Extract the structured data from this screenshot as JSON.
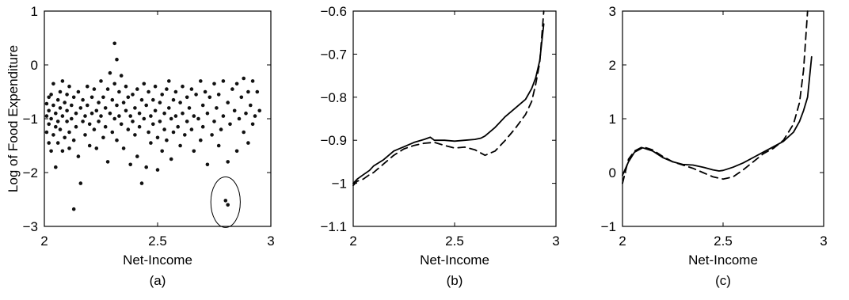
{
  "chart_data": [
    {
      "panel": "(a)",
      "type": "scatter",
      "xlabel": "Net-Income",
      "ylabel": "Log of Food Expenditure",
      "xlim": [
        2,
        3
      ],
      "ylim": [
        -3,
        1
      ],
      "xticks": [
        "2",
        "2.5",
        "3"
      ],
      "yticks": [
        "1",
        "0",
        "−1",
        "−2",
        "−3"
      ],
      "xtick_values": [
        2,
        2.5,
        3
      ],
      "ytick_values": [
        1,
        0,
        -1,
        -2,
        -3
      ],
      "grid": false,
      "annotation": "circle around two outlying points",
      "circle": {
        "cx": 2.8,
        "cy": -2.55,
        "rx": 0.065,
        "ry": 0.47
      },
      "series": [
        {
          "marker": "dot",
          "color": "#111111",
          "points": [
            [
              2.01,
              -0.72
            ],
            [
              2.01,
              -0.95
            ],
            [
              2.01,
              -1.25
            ],
            [
              2.02,
              -0.6
            ],
            [
              2.02,
              -1.1
            ],
            [
              2.02,
              -1.45
            ],
            [
              2.02,
              -0.85
            ],
            [
              2.03,
              -0.55
            ],
            [
              2.03,
              -1.0
            ],
            [
              2.03,
              -1.6
            ],
            [
              2.04,
              -0.75
            ],
            [
              2.04,
              -1.3
            ],
            [
              2.04,
              -0.35
            ],
            [
              2.05,
              -0.9
            ],
            [
              2.05,
              -1.15
            ],
            [
              2.05,
              -1.9
            ],
            [
              2.06,
              -0.65
            ],
            [
              2.06,
              -1.05
            ],
            [
              2.06,
              -1.45
            ],
            [
              2.07,
              -0.5
            ],
            [
              2.07,
              -0.8
            ],
            [
              2.07,
              -1.2
            ],
            [
              2.08,
              -0.3
            ],
            [
              2.08,
              -0.95
            ],
            [
              2.08,
              -1.6
            ],
            [
              2.09,
              -0.7
            ],
            [
              2.09,
              -1.35
            ],
            [
              2.1,
              -0.55
            ],
            [
              2.1,
              -0.85
            ],
            [
              2.1,
              -1.05
            ],
            [
              2.11,
              -0.4
            ],
            [
              2.11,
              -1.25
            ],
            [
              2.11,
              -1.55
            ],
            [
              2.12,
              -0.75
            ],
            [
              2.12,
              -1.0
            ],
            [
              2.13,
              -0.6
            ],
            [
              2.13,
              -1.4
            ],
            [
              2.13,
              -2.68
            ],
            [
              2.14,
              -0.9
            ],
            [
              2.14,
              -1.15
            ],
            [
              2.15,
              -0.5
            ],
            [
              2.15,
              -1.7
            ],
            [
              2.16,
              -0.8
            ],
            [
              2.16,
              -2.2
            ],
            [
              2.17,
              -0.65
            ],
            [
              2.17,
              -1.05
            ],
            [
              2.18,
              -0.95
            ],
            [
              2.18,
              -1.3
            ],
            [
              2.19,
              -0.4
            ],
            [
              2.19,
              -0.75
            ],
            [
              2.2,
              -1.1
            ],
            [
              2.2,
              -1.5
            ],
            [
              2.21,
              -0.6
            ],
            [
              2.21,
              -0.9
            ],
            [
              2.22,
              -1.2
            ],
            [
              2.22,
              -0.45
            ],
            [
              2.23,
              -0.85
            ],
            [
              2.23,
              -1.55
            ],
            [
              2.24,
              -0.7
            ],
            [
              2.24,
              -1.05
            ],
            [
              2.25,
              -0.3
            ],
            [
              2.25,
              -0.95
            ],
            [
              2.26,
              -0.6
            ],
            [
              2.26,
              -1.35
            ],
            [
              2.27,
              -0.8
            ],
            [
              2.27,
              -1.15
            ],
            [
              2.28,
              -0.45
            ],
            [
              2.28,
              -1.8
            ],
            [
              2.29,
              -0.15
            ],
            [
              2.29,
              -0.9
            ],
            [
              2.3,
              -0.65
            ],
            [
              2.3,
              -1.25
            ],
            [
              2.31,
              0.4
            ],
            [
              2.31,
              -0.35
            ],
            [
              2.31,
              -1.0
            ],
            [
              2.32,
              0.1
            ],
            [
              2.32,
              -0.75
            ],
            [
              2.32,
              -1.4
            ],
            [
              2.33,
              -0.5
            ],
            [
              2.33,
              -0.95
            ],
            [
              2.34,
              -0.2
            ],
            [
              2.34,
              -1.1
            ],
            [
              2.35,
              -0.7
            ],
            [
              2.35,
              -1.55
            ],
            [
              2.36,
              -0.4
            ],
            [
              2.36,
              -0.85
            ],
            [
              2.37,
              -1.2
            ],
            [
              2.37,
              -0.6
            ],
            [
              2.38,
              -0.95
            ],
            [
              2.38,
              -1.85
            ],
            [
              2.39,
              -0.55
            ],
            [
              2.39,
              -1.05
            ],
            [
              2.4,
              -0.8
            ],
            [
              2.4,
              -1.3
            ],
            [
              2.41,
              -0.45
            ],
            [
              2.41,
              -1.7
            ],
            [
              2.42,
              -0.9
            ],
            [
              2.42,
              -1.15
            ],
            [
              2.43,
              -0.65
            ],
            [
              2.43,
              -2.2
            ],
            [
              2.44,
              -0.35
            ],
            [
              2.44,
              -1.0
            ],
            [
              2.45,
              -1.9
            ],
            [
              2.45,
              -0.75
            ],
            [
              2.46,
              -1.25
            ],
            [
              2.46,
              -0.5
            ],
            [
              2.47,
              -0.95
            ],
            [
              2.47,
              -1.45
            ],
            [
              2.48,
              -0.65
            ],
            [
              2.48,
              -1.1
            ],
            [
              2.49,
              -0.4
            ],
            [
              2.49,
              -0.85
            ],
            [
              2.5,
              -1.35
            ],
            [
              2.5,
              -1.95
            ],
            [
              2.51,
              -0.7
            ],
            [
              2.51,
              -1.05
            ],
            [
              2.52,
              -0.55
            ],
            [
              2.52,
              -1.6
            ],
            [
              2.53,
              -0.9
            ],
            [
              2.53,
              -1.2
            ],
            [
              2.54,
              -0.45
            ],
            [
              2.54,
              -1.4
            ],
            [
              2.55,
              -0.8
            ],
            [
              2.55,
              -0.3
            ],
            [
              2.56,
              -1.0
            ],
            [
              2.56,
              -1.75
            ],
            [
              2.57,
              -0.65
            ],
            [
              2.57,
              -1.25
            ],
            [
              2.58,
              -0.5
            ],
            [
              2.58,
              -0.95
            ],
            [
              2.59,
              -1.15
            ],
            [
              2.6,
              -0.7
            ],
            [
              2.6,
              -1.5
            ],
            [
              2.61,
              -0.4
            ],
            [
              2.61,
              -0.9
            ],
            [
              2.62,
              -1.3
            ],
            [
              2.63,
              -0.6
            ],
            [
              2.63,
              -1.05
            ],
            [
              2.64,
              -0.8
            ],
            [
              2.65,
              -0.45
            ],
            [
              2.65,
              -1.2
            ],
            [
              2.66,
              -0.95
            ],
            [
              2.66,
              -1.6
            ],
            [
              2.67,
              -0.55
            ],
            [
              2.68,
              -1.0
            ],
            [
              2.69,
              -0.3
            ],
            [
              2.69,
              -1.4
            ],
            [
              2.7,
              -0.75
            ],
            [
              2.7,
              -1.15
            ],
            [
              2.71,
              -0.5
            ],
            [
              2.72,
              -0.9
            ],
            [
              2.72,
              -1.85
            ],
            [
              2.73,
              -0.6
            ],
            [
              2.74,
              -1.3
            ],
            [
              2.75,
              -0.35
            ],
            [
              2.75,
              -1.05
            ],
            [
              2.76,
              -0.8
            ],
            [
              2.77,
              -1.5
            ],
            [
              2.77,
              -0.55
            ],
            [
              2.78,
              -1.2
            ],
            [
              2.79,
              -0.3
            ],
            [
              2.79,
              -0.95
            ],
            [
              2.8,
              -2.52
            ],
            [
              2.81,
              -2.6
            ],
            [
              2.81,
              -0.7
            ],
            [
              2.81,
              -1.8
            ],
            [
              2.82,
              -1.1
            ],
            [
              2.83,
              -0.45
            ],
            [
              2.84,
              -0.85
            ],
            [
              2.85,
              -1.6
            ],
            [
              2.85,
              -0.35
            ],
            [
              2.86,
              -1.0
            ],
            [
              2.87,
              -0.6
            ],
            [
              2.88,
              -1.25
            ],
            [
              2.88,
              -0.25
            ],
            [
              2.89,
              -0.9
            ],
            [
              2.9,
              -1.45
            ],
            [
              2.9,
              -0.5
            ],
            [
              2.91,
              -0.75
            ],
            [
              2.92,
              -1.1
            ],
            [
              2.92,
              -0.3
            ],
            [
              2.93,
              -0.95
            ],
            [
              2.94,
              -0.5
            ],
            [
              2.95,
              -0.85
            ]
          ]
        }
      ]
    },
    {
      "panel": "(b)",
      "type": "line",
      "xlabel": "Net-Income",
      "ylabel": "",
      "xlim": [
        2,
        3
      ],
      "ylim": [
        -1.1,
        -0.6
      ],
      "xticks": [
        "2",
        "2.5",
        "3"
      ],
      "yticks": [
        "−0.6",
        "−0.7",
        "−0.8",
        "−0.9",
        "−1",
        "−1.1"
      ],
      "xtick_values": [
        2,
        2.5,
        3
      ],
      "ytick_values": [
        -0.6,
        -0.7,
        -0.8,
        -0.9,
        -1.0,
        -1.1
      ],
      "grid": false,
      "series": [
        {
          "style": "solid",
          "x": [
            2.0,
            2.02,
            2.05,
            2.08,
            2.1,
            2.15,
            2.2,
            2.25,
            2.3,
            2.35,
            2.38,
            2.4,
            2.45,
            2.5,
            2.55,
            2.6,
            2.63,
            2.65,
            2.7,
            2.75,
            2.8,
            2.85,
            2.88,
            2.9,
            2.92,
            2.94
          ],
          "y": [
            -1.0,
            -0.99,
            -0.98,
            -0.97,
            -0.96,
            -0.945,
            -0.925,
            -0.915,
            -0.905,
            -0.898,
            -0.893,
            -0.9,
            -0.9,
            -0.902,
            -0.9,
            -0.898,
            -0.895,
            -0.89,
            -0.87,
            -0.845,
            -0.825,
            -0.805,
            -0.78,
            -0.755,
            -0.715,
            -0.63
          ]
        },
        {
          "style": "dashed",
          "x": [
            2.0,
            2.02,
            2.05,
            2.08,
            2.1,
            2.15,
            2.2,
            2.25,
            2.3,
            2.35,
            2.4,
            2.45,
            2.5,
            2.55,
            2.6,
            2.65,
            2.7,
            2.75,
            2.8,
            2.85,
            2.88,
            2.9,
            2.92,
            2.94
          ],
          "y": [
            -1.005,
            -0.995,
            -0.99,
            -0.98,
            -0.975,
            -0.955,
            -0.935,
            -0.92,
            -0.912,
            -0.907,
            -0.905,
            -0.912,
            -0.918,
            -0.916,
            -0.922,
            -0.935,
            -0.925,
            -0.9,
            -0.872,
            -0.84,
            -0.81,
            -0.77,
            -0.72,
            -0.6
          ]
        }
      ]
    },
    {
      "panel": "(c)",
      "type": "line",
      "xlabel": "Net-Income",
      "ylabel": "",
      "xlim": [
        2,
        3
      ],
      "ylim": [
        -1,
        3
      ],
      "xticks": [
        "2",
        "2.5",
        "3"
      ],
      "yticks": [
        "3",
        "2",
        "1",
        "0",
        "−1"
      ],
      "xtick_values": [
        2,
        2.5,
        3
      ],
      "ytick_values": [
        3,
        2,
        1,
        0,
        -1
      ],
      "grid": false,
      "series": [
        {
          "style": "solid",
          "x": [
            2.0,
            2.03,
            2.06,
            2.1,
            2.15,
            2.2,
            2.25,
            2.3,
            2.35,
            2.4,
            2.45,
            2.48,
            2.5,
            2.55,
            2.6,
            2.65,
            2.7,
            2.75,
            2.8,
            2.85,
            2.88,
            2.9,
            2.92,
            2.94
          ],
          "y": [
            -0.05,
            0.2,
            0.38,
            0.46,
            0.4,
            0.28,
            0.2,
            0.15,
            0.14,
            0.1,
            0.05,
            0.03,
            0.04,
            0.1,
            0.18,
            0.28,
            0.38,
            0.48,
            0.58,
            0.75,
            0.95,
            1.15,
            1.4,
            2.15
          ]
        },
        {
          "style": "dashed",
          "x": [
            2.0,
            2.03,
            2.06,
            2.1,
            2.15,
            2.2,
            2.25,
            2.3,
            2.35,
            2.4,
            2.45,
            2.5,
            2.55,
            2.6,
            2.65,
            2.7,
            2.75,
            2.8,
            2.85,
            2.88,
            2.9,
            2.92
          ],
          "y": [
            -0.2,
            0.25,
            0.4,
            0.48,
            0.42,
            0.3,
            0.2,
            0.14,
            0.08,
            0.0,
            -0.08,
            -0.12,
            -0.08,
            0.05,
            0.2,
            0.35,
            0.45,
            0.6,
            0.9,
            1.3,
            1.9,
            3.0
          ]
        }
      ]
    }
  ]
}
